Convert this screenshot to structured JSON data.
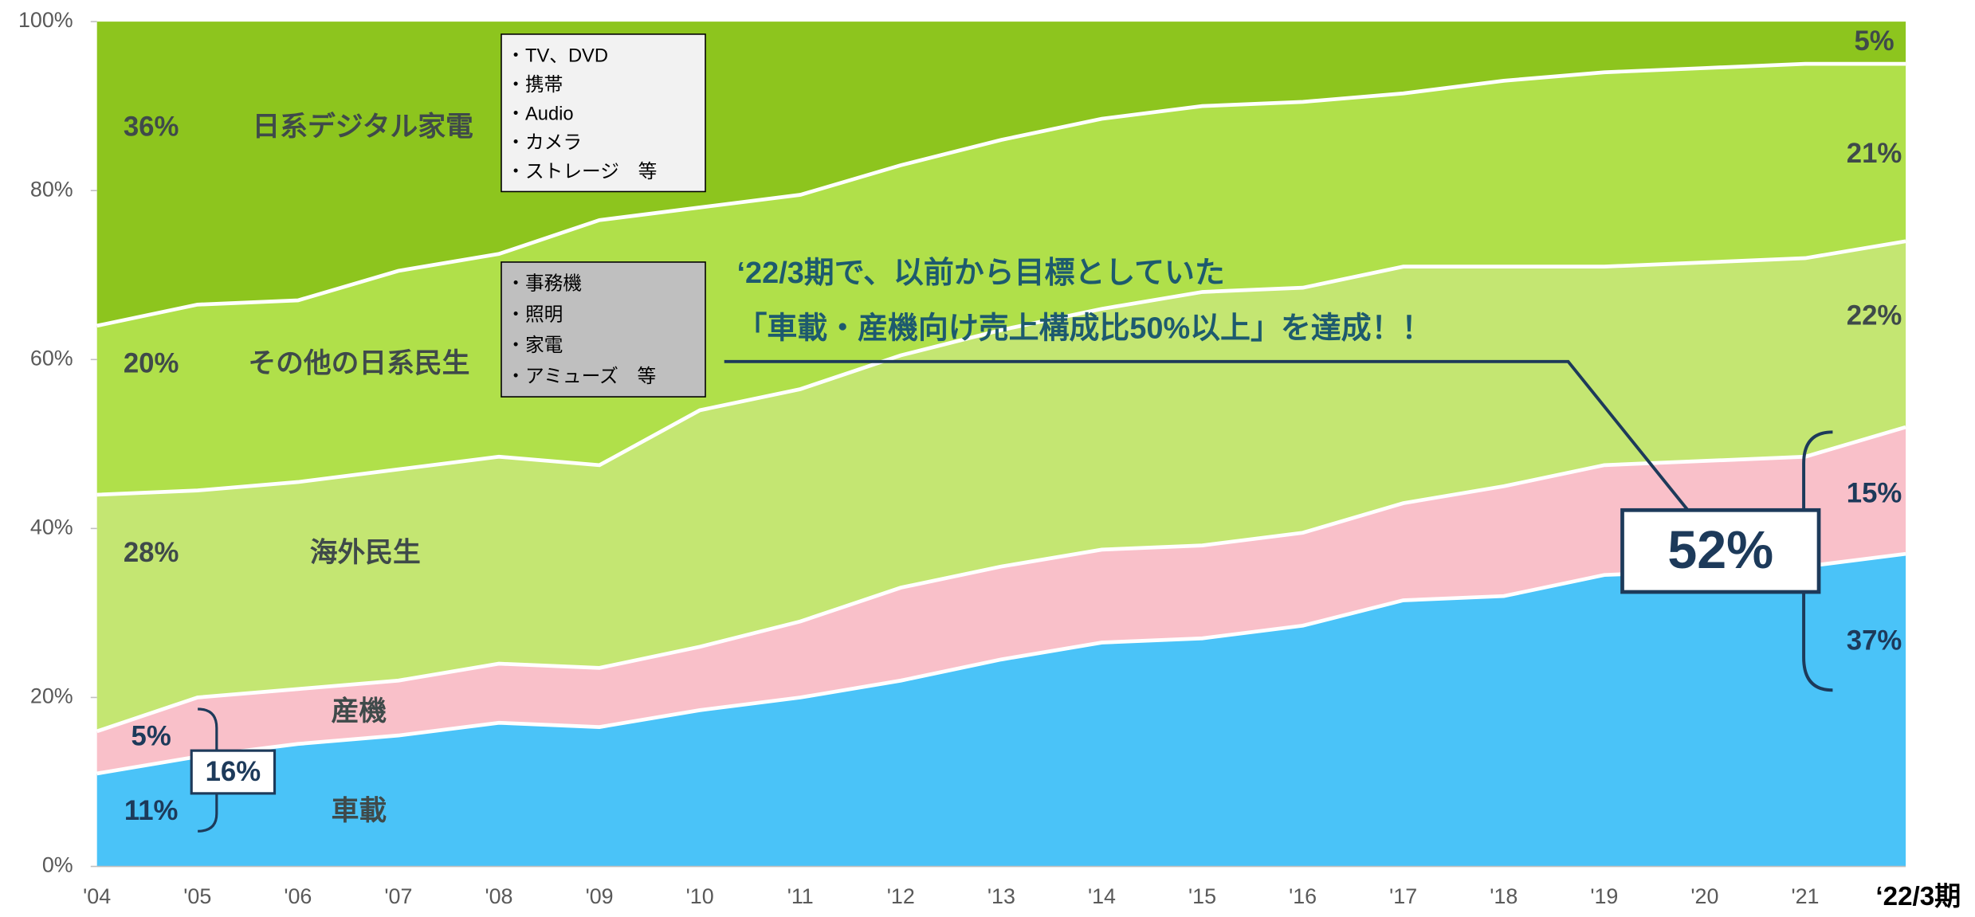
{
  "chart_data": {
    "type": "stacked_area",
    "categories": [
      "'04",
      "'05",
      "'06",
      "'07",
      "'08",
      "'09",
      "'10",
      "'11",
      "'12",
      "'13",
      "'14",
      "'15",
      "'16",
      "'17",
      "'18",
      "'19",
      "'20",
      "'21",
      "‘22/3期"
    ],
    "series": [
      {
        "name": "車載",
        "color": "#4ac3f8",
        "values": [
          11,
          13,
          14.5,
          15.5,
          17,
          16.5,
          18.5,
          20,
          22,
          24.5,
          26.5,
          27,
          28.5,
          31.5,
          32,
          34.5,
          35,
          35.5,
          37
        ],
        "value_labels": [
          "11%",
          null,
          null,
          null,
          null,
          null,
          null,
          null,
          null,
          null,
          null,
          null,
          null,
          null,
          null,
          null,
          null,
          null,
          "37%"
        ]
      },
      {
        "name": "産機",
        "color": "#f9c0c9",
        "values": [
          5,
          7,
          6.5,
          6.5,
          7,
          7,
          7.5,
          9,
          11,
          11,
          11,
          11,
          11,
          11.5,
          13,
          13,
          13,
          13,
          15
        ],
        "value_labels": [
          "5%",
          null,
          null,
          null,
          null,
          null,
          null,
          null,
          null,
          null,
          null,
          null,
          null,
          null,
          null,
          null,
          null,
          null,
          "15%"
        ]
      },
      {
        "name": "海外民生",
        "color": "#c4e672",
        "values": [
          28,
          24.5,
          24.5,
          25,
          24.5,
          24,
          28,
          27.5,
          27.5,
          28,
          28.5,
          30,
          29,
          28,
          26,
          23.5,
          23.5,
          23.5,
          22
        ],
        "value_labels": [
          "28%",
          null,
          null,
          null,
          null,
          null,
          null,
          null,
          null,
          null,
          null,
          null,
          null,
          null,
          null,
          null,
          null,
          null,
          "22%"
        ]
      },
      {
        "name": "その他の日系民生",
        "color": "#b0e04a",
        "values": [
          20,
          22,
          21.5,
          23.5,
          24,
          29,
          24,
          23,
          22.5,
          22.5,
          22.5,
          22,
          22,
          20.5,
          22,
          23,
          23,
          23,
          21
        ],
        "value_labels": [
          "20%",
          null,
          null,
          null,
          null,
          null,
          null,
          null,
          null,
          null,
          null,
          null,
          null,
          null,
          null,
          null,
          null,
          null,
          "21%"
        ]
      },
      {
        "name": "日系デジタル家電",
        "color": "#8dc51e",
        "values": [
          36,
          33.5,
          33,
          29.5,
          27.5,
          23.5,
          22,
          20.5,
          17,
          14,
          11.5,
          10,
          9.5,
          8.5,
          7,
          6,
          5.5,
          5,
          5
        ],
        "value_labels": [
          "36%",
          null,
          null,
          null,
          null,
          null,
          null,
          null,
          null,
          null,
          null,
          null,
          null,
          null,
          null,
          null,
          null,
          null,
          "5%"
        ]
      }
    ],
    "ylim": [
      0,
      100
    ],
    "yticks": [
      {
        "value": 0,
        "label": "0%"
      },
      {
        "value": 20,
        "label": "20%"
      },
      {
        "value": 40,
        "label": "40%"
      },
      {
        "value": 60,
        "label": "60%"
      },
      {
        "value": 80,
        "label": "80%"
      },
      {
        "value": 100,
        "label": "100%"
      }
    ],
    "annotations": {
      "digital_examples": [
        "・TV、DVD",
        "・携帯",
        "・Audio",
        "・カメラ",
        "・ストレージ　等"
      ],
      "other_examples": [
        "・事務機",
        "・照明",
        "・家電",
        "・アミューズ　等"
      ],
      "callout": [
        "‘22/3期で、以前から目標としていた",
        "「車載・産機向け売上構成比50%以上」を達成！！"
      ],
      "total_start": "16%",
      "total_end": "52%"
    }
  }
}
